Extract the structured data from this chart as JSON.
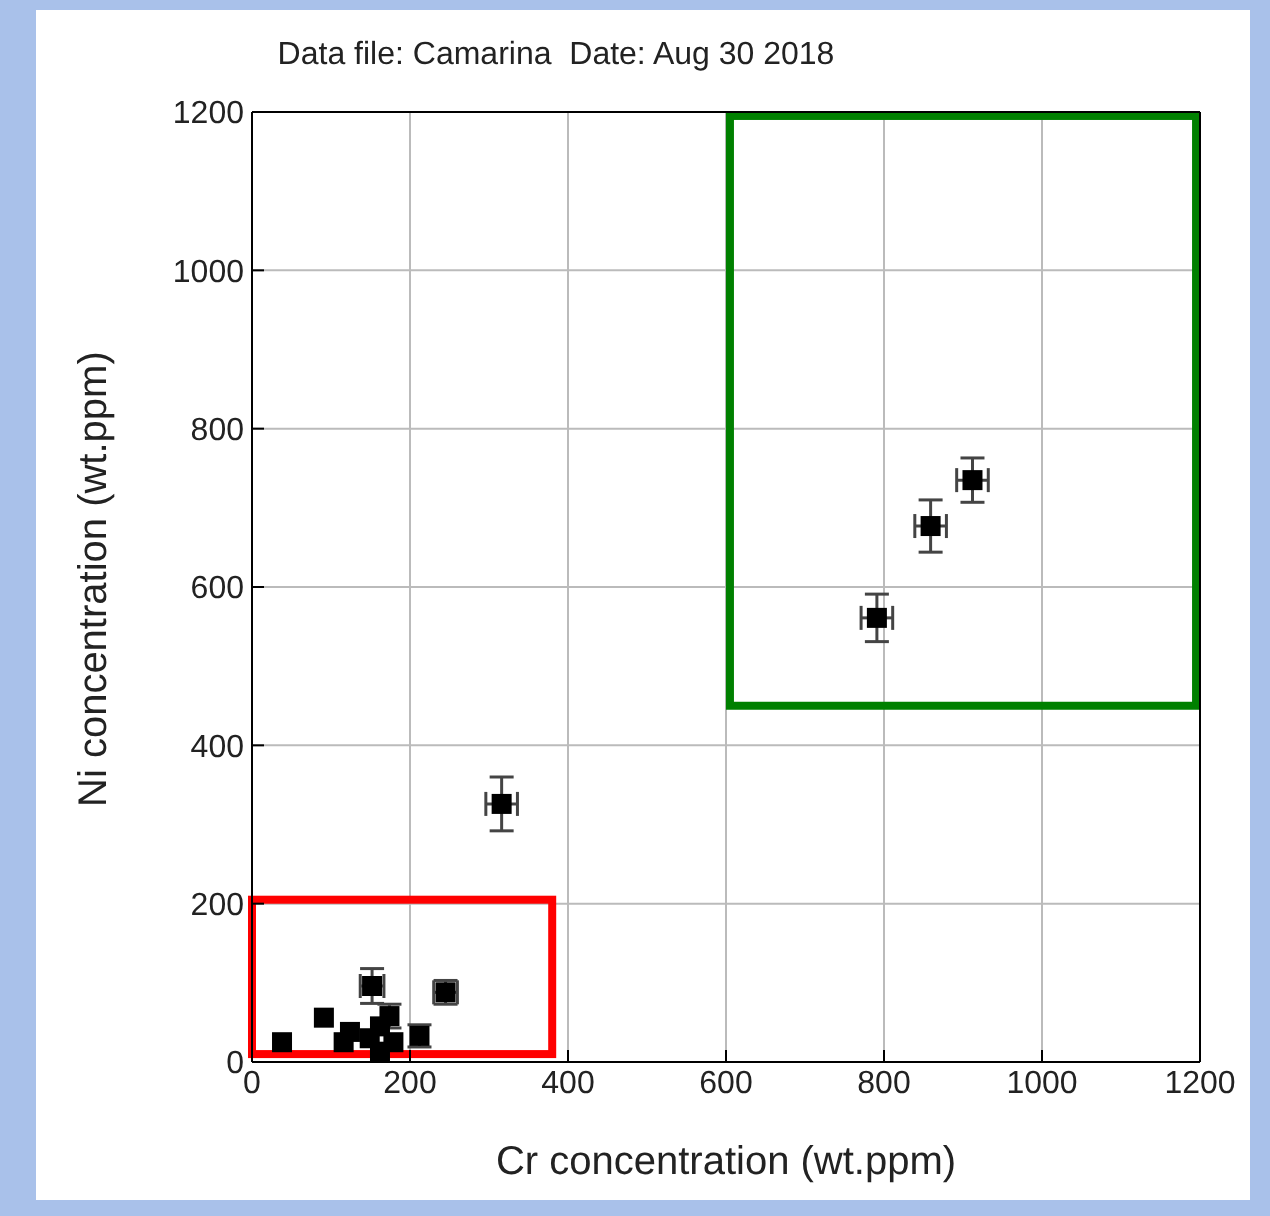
{
  "chart_data": {
    "type": "scatter",
    "title": "Data file: Camarina  Date: Aug 30 2018",
    "xlabel": "Cr concentration (wt.ppm)",
    "ylabel": "Ni concentration (wt.ppm)",
    "x": [
      38,
      91,
      116,
      124,
      149,
      152,
      162,
      162,
      174,
      179,
      212,
      245,
      316,
      791,
      859,
      912
    ],
    "series": [
      {
        "color": "#000000",
        "values": [
          25,
          56,
          25,
          38,
          30,
          96,
          45,
          13,
          58,
          25,
          33,
          88,
          326,
          561,
          677,
          735
        ],
        "errors": [
          null,
          null,
          null,
          null,
          null,
          22,
          null,
          null,
          15,
          null,
          14,
          15,
          34,
          30,
          33,
          28
        ],
        "xerrors": [
          null,
          null,
          null,
          null,
          null,
          15,
          null,
          null,
          null,
          null,
          null,
          15,
          20,
          20,
          20,
          20
        ]
      }
    ],
    "xlim": [
      0,
      1200
    ],
    "ylim": [
      0,
      1200
    ],
    "xticks": [
      0,
      200,
      400,
      600,
      800,
      1000,
      1200
    ],
    "yticks": [
      0,
      200,
      400,
      600,
      800,
      1000,
      1200
    ],
    "grid": true,
    "legend": false,
    "marker": "square",
    "line_style": "none"
  }
}
